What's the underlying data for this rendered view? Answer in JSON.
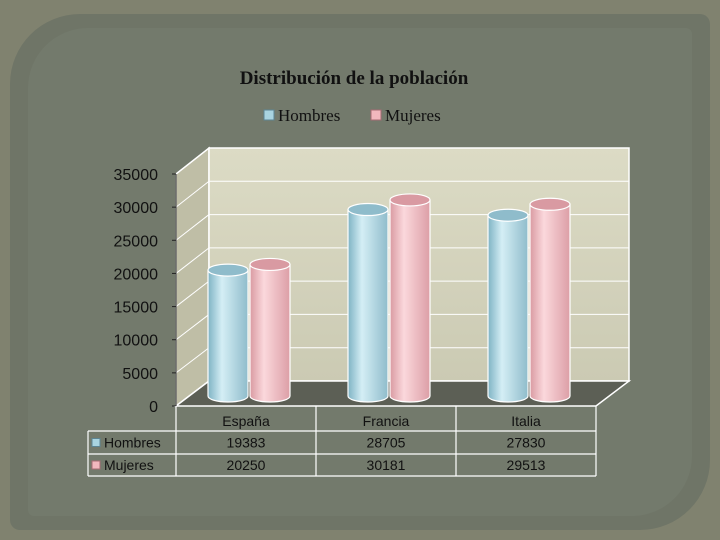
{
  "chart_data": {
    "type": "bar",
    "title": "Distribución de la población",
    "categories": [
      "España",
      "Francia",
      "Italia"
    ],
    "series": [
      {
        "name": "Hombres",
        "values": [
          19383,
          28705,
          27830
        ],
        "color": "#a9d4e0"
      },
      {
        "name": "Mujeres",
        "values": [
          20250,
          30181,
          29513
        ],
        "color": "#f2b7be"
      }
    ],
    "ylim": [
      0,
      35000
    ],
    "yticks": [
      0,
      5000,
      10000,
      15000,
      20000,
      25000,
      30000,
      35000
    ],
    "legend": "top",
    "grid": true,
    "data_table": true
  }
}
